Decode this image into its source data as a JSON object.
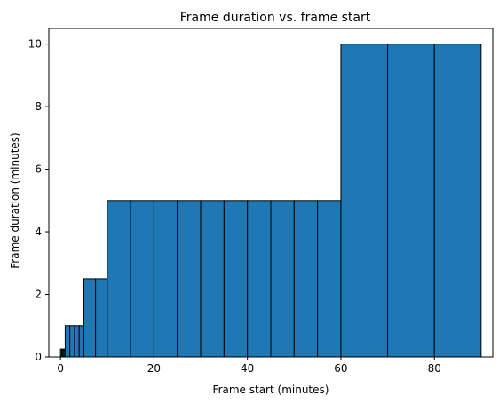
{
  "chart_data": {
    "type": "bar",
    "title": "Frame duration vs. frame start",
    "xlabel": "Frame start (minutes)",
    "ylabel": "Frame duration (minutes)",
    "xlim": [
      -2.5,
      92.5
    ],
    "ylim": [
      0,
      10.5
    ],
    "xticks": [
      0,
      20,
      40,
      60,
      80
    ],
    "yticks": [
      0,
      2,
      4,
      6,
      8,
      10
    ],
    "grid": false,
    "legend": "none",
    "bar_color": "#1f77b4",
    "edge_color": "#000000",
    "bars": [
      {
        "start": 0,
        "duration": 0.25
      },
      {
        "start": 0.25,
        "duration": 0.25
      },
      {
        "start": 0.5,
        "duration": 0.25
      },
      {
        "start": 0.75,
        "duration": 0.25
      },
      {
        "start": 1,
        "duration": 1
      },
      {
        "start": 2,
        "duration": 1
      },
      {
        "start": 3,
        "duration": 1
      },
      {
        "start": 4,
        "duration": 1
      },
      {
        "start": 5,
        "duration": 2.5
      },
      {
        "start": 7.5,
        "duration": 2.5
      },
      {
        "start": 10,
        "duration": 5
      },
      {
        "start": 15,
        "duration": 5
      },
      {
        "start": 20,
        "duration": 5
      },
      {
        "start": 25,
        "duration": 5
      },
      {
        "start": 30,
        "duration": 5
      },
      {
        "start": 35,
        "duration": 5
      },
      {
        "start": 40,
        "duration": 5
      },
      {
        "start": 45,
        "duration": 5
      },
      {
        "start": 50,
        "duration": 5
      },
      {
        "start": 55,
        "duration": 5
      },
      {
        "start": 60,
        "duration": 10
      },
      {
        "start": 70,
        "duration": 10
      },
      {
        "start": 80,
        "duration": 10
      }
    ]
  }
}
